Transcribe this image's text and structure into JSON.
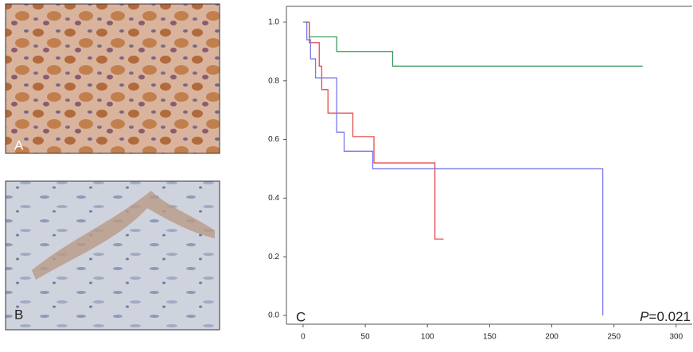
{
  "panels": [
    {
      "label": "A"
    },
    {
      "label": "B"
    }
  ],
  "chart_data": {
    "type": "step",
    "panel_label": "C",
    "annotation": {
      "italic": "P",
      "text": "=0.021"
    },
    "xlim": [
      -13.4,
      312.9
    ],
    "ylim": [
      -0.03,
      1.054
    ],
    "xticks": [
      0,
      50,
      100,
      150,
      200,
      250,
      300
    ],
    "yticks": [
      {
        "value": 0,
        "label": "0.0"
      },
      0.2,
      0.4,
      0.6,
      0.8,
      {
        "value": 1,
        "label": "1.0"
      }
    ],
    "series": [
      {
        "color": "#3c9a5c",
        "x": [
          0,
          5,
          27,
          72,
          273
        ],
        "values": [
          1.0,
          0.95,
          0.9,
          0.85,
          0.85
        ]
      },
      {
        "color": "#e84a4a",
        "x": [
          2,
          5,
          13,
          15,
          20,
          40,
          57,
          106,
          113
        ],
        "values": [
          1.0,
          0.93,
          0.85,
          0.77,
          0.69,
          0.61,
          0.52,
          0.26,
          0.26
        ]
      },
      {
        "color": "#7878ec",
        "x": [
          2,
          3,
          6,
          10,
          27,
          33,
          56,
          241
        ],
        "values": [
          1.0,
          0.94,
          0.875,
          0.81,
          0.625,
          0.56,
          0.5,
          0.0
        ]
      }
    ]
  }
}
